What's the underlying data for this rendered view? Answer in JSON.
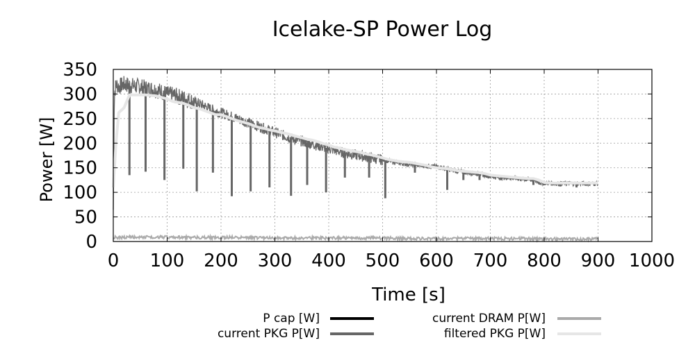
{
  "chart_data": {
    "type": "line",
    "title": "Icelake-SP Power Log",
    "xlabel": "Time [s]",
    "ylabel": "Power [W]",
    "xlim": [
      0,
      1000
    ],
    "ylim": [
      0,
      350
    ],
    "x_ticks": [
      0,
      100,
      200,
      300,
      400,
      500,
      600,
      700,
      800,
      900,
      1000
    ],
    "y_ticks": [
      0,
      50,
      100,
      150,
      200,
      250,
      300,
      350
    ],
    "grid": true,
    "legend_position": "bottom",
    "series": [
      {
        "name": "P cap [W]",
        "color": "#000000",
        "x": [],
        "y": []
      },
      {
        "name": "current PKG P[W]",
        "color": "#666666",
        "x": [
          0,
          2,
          5,
          10,
          20,
          30,
          40,
          50,
          60,
          70,
          80,
          90,
          100,
          110,
          120,
          130,
          140,
          150,
          160,
          170,
          180,
          190,
          200,
          210,
          220,
          230,
          240,
          250,
          260,
          270,
          280,
          290,
          300,
          310,
          320,
          330,
          340,
          350,
          360,
          370,
          380,
          390,
          400,
          410,
          420,
          430,
          440,
          450,
          460,
          470,
          480,
          490,
          500,
          510,
          520,
          530,
          540,
          550,
          560,
          570,
          580,
          590,
          600,
          610,
          620,
          630,
          640,
          650,
          660,
          670,
          680,
          690,
          700,
          710,
          720,
          730,
          740,
          750,
          760,
          770,
          780,
          790,
          800,
          810,
          820,
          830,
          840,
          850,
          860,
          870,
          880,
          890,
          900
        ],
        "y": [
          65,
          300,
          320,
          315,
          320,
          318,
          316,
          315,
          312,
          310,
          308,
          305,
          300,
          298,
          295,
          292,
          288,
          284,
          280,
          275,
          270,
          265,
          262,
          258,
          254,
          250,
          246,
          242,
          238,
          234,
          230,
          226,
          222,
          218,
          214,
          210,
          207,
          204,
          201,
          198,
          195,
          192,
          189,
          186,
          183,
          180,
          178,
          176,
          174,
          172,
          170,
          168,
          166,
          164,
          162,
          160,
          158,
          157,
          156,
          155,
          154,
          153,
          152,
          150,
          147,
          145,
          143,
          141,
          140,
          139,
          137,
          135,
          133,
          131,
          130,
          130,
          129,
          128,
          127,
          126,
          125,
          120,
          119,
          119,
          118,
          118,
          118,
          118,
          118,
          118,
          118,
          118,
          118
        ],
        "dips": [
          [
            30,
            135
          ],
          [
            60,
            142
          ],
          [
            95,
            125
          ],
          [
            130,
            148
          ],
          [
            155,
            102
          ],
          [
            185,
            140
          ],
          [
            220,
            92
          ],
          [
            255,
            102
          ],
          [
            290,
            110
          ],
          [
            330,
            93
          ],
          [
            360,
            115
          ],
          [
            395,
            100
          ],
          [
            430,
            130
          ],
          [
            475,
            130
          ],
          [
            505,
            88
          ],
          [
            560,
            140
          ],
          [
            620,
            105
          ],
          [
            650,
            125
          ],
          [
            680,
            125
          ],
          [
            720,
            125
          ],
          [
            780,
            115
          ],
          [
            830,
            112
          ],
          [
            860,
            110
          ]
        ]
      },
      {
        "name": "current DRAM P[W]",
        "color": "#aaaaaa",
        "x": [
          0,
          50,
          100,
          150,
          200,
          250,
          300,
          350,
          400,
          450,
          500,
          550,
          600,
          650,
          700,
          750,
          800,
          850,
          900
        ],
        "y": [
          8,
          9,
          9,
          8,
          8,
          8,
          7,
          7,
          7,
          7,
          7,
          6,
          6,
          6,
          6,
          6,
          5,
          5,
          5
        ]
      },
      {
        "name": "filtered PKG P[W]",
        "color": "#e6e6e6",
        "x": [
          0,
          5,
          10,
          20,
          30,
          40,
          50,
          60,
          70,
          80,
          90,
          100,
          110,
          120,
          130,
          140,
          150,
          160,
          170,
          180,
          190,
          200,
          210,
          220,
          230,
          240,
          250,
          260,
          270,
          280,
          290,
          300,
          310,
          320,
          330,
          340,
          350,
          360,
          370,
          380,
          390,
          400,
          410,
          420,
          430,
          440,
          450,
          460,
          470,
          480,
          490,
          500,
          510,
          520,
          530,
          540,
          550,
          560,
          570,
          580,
          590,
          600,
          610,
          620,
          630,
          640,
          650,
          660,
          670,
          680,
          690,
          700,
          710,
          720,
          730,
          740,
          750,
          760,
          770,
          780,
          790,
          800,
          810,
          820,
          830,
          840,
          850,
          860,
          870,
          880,
          890,
          900
        ],
        "y": [
          110,
          200,
          262,
          272,
          298,
          298,
          298,
          298,
          297,
          296,
          293,
          290,
          285,
          283,
          281,
          277,
          272,
          270,
          266,
          262,
          258,
          258,
          254,
          250,
          246,
          243,
          240,
          236,
          232,
          230,
          227,
          225,
          222,
          220,
          217,
          214,
          211,
          208,
          206,
          203,
          199,
          196,
          192,
          190,
          187,
          185,
          183,
          181,
          178,
          176,
          173,
          170,
          167,
          165,
          163,
          162,
          161,
          159,
          157,
          155,
          152,
          150,
          149,
          148,
          146,
          144,
          143,
          142,
          141,
          140,
          138,
          135,
          134,
          133,
          132,
          131,
          130,
          129,
          128,
          128,
          125,
          120,
          119,
          119,
          119,
          119,
          119,
          119,
          119,
          119,
          119,
          119
        ]
      }
    ]
  }
}
